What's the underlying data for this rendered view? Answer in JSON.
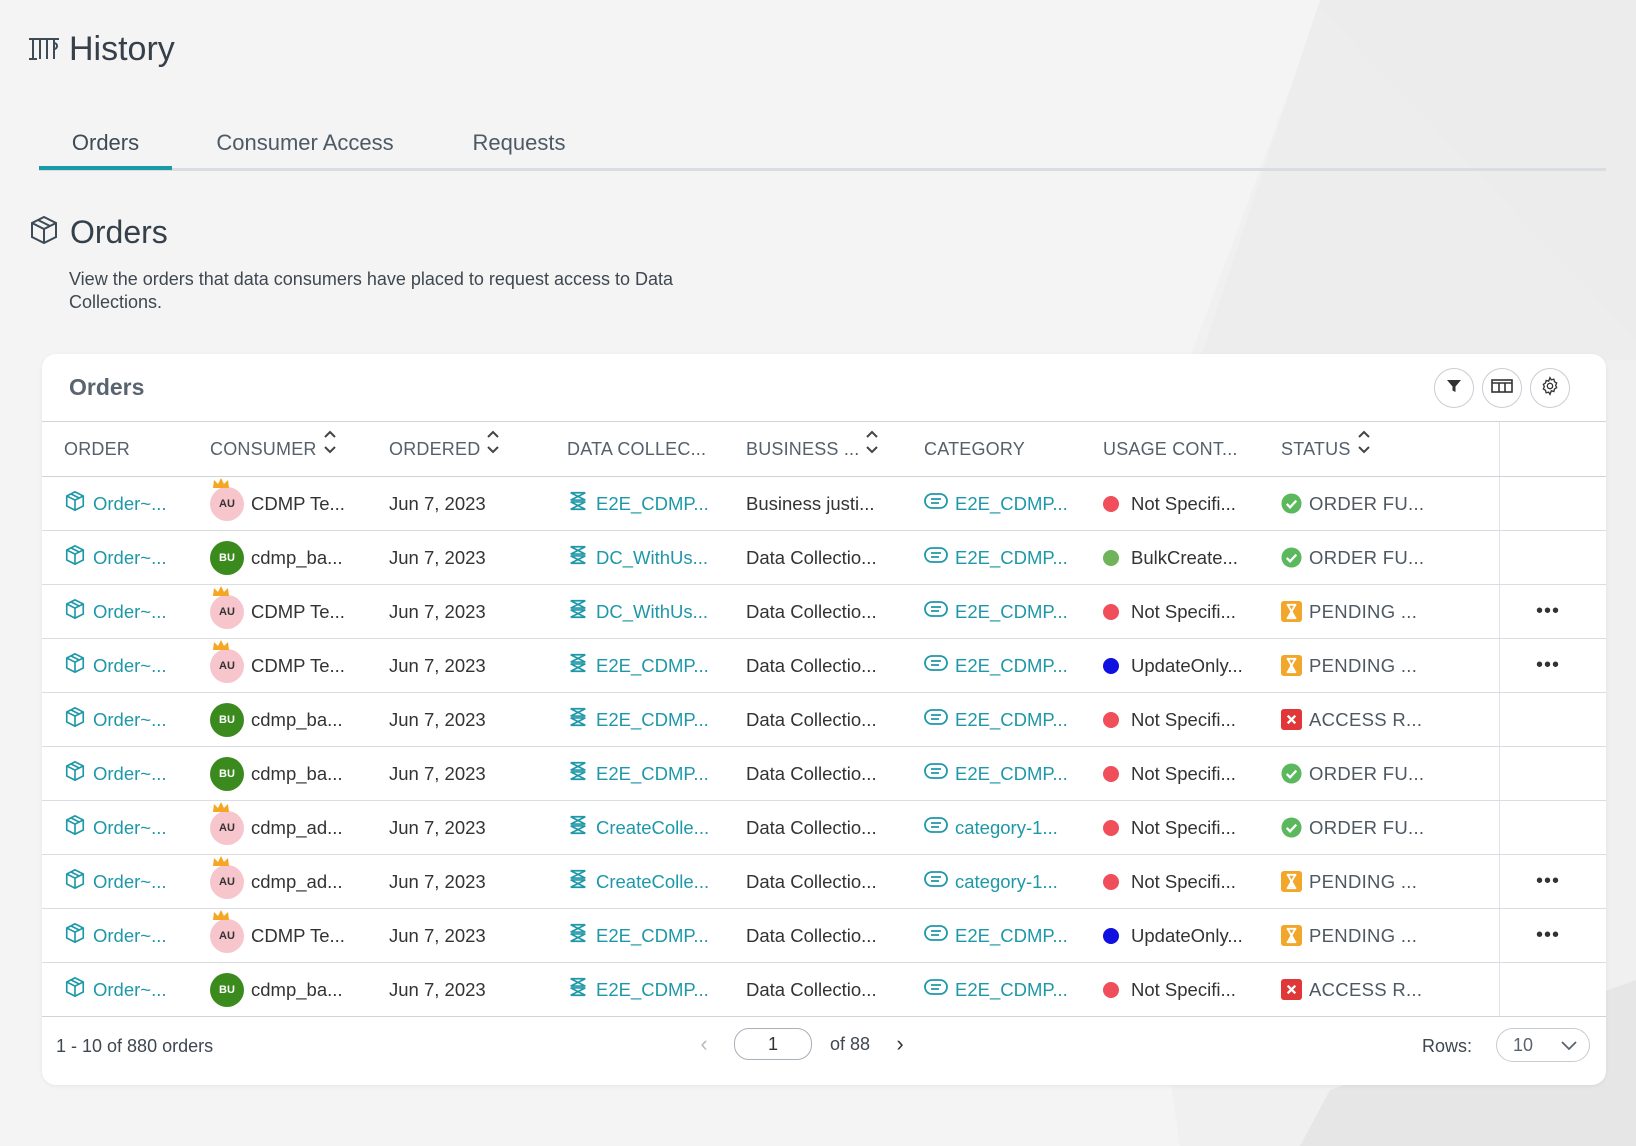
{
  "page": {
    "title": "History"
  },
  "tabs": [
    {
      "label": "Orders",
      "active": true
    },
    {
      "label": "Consumer Access",
      "active": false
    },
    {
      "label": "Requests",
      "active": false
    }
  ],
  "section": {
    "title": "Orders",
    "description": "View the orders that data consumers have placed to request access to Data Collections."
  },
  "card": {
    "title": "Orders",
    "actions": [
      "filter-icon",
      "columns-icon",
      "settings-icon"
    ]
  },
  "columns": [
    {
      "label": "ORDER",
      "sortable": false
    },
    {
      "label": "CONSUMER",
      "sortable": true
    },
    {
      "label": "ORDERED",
      "sortable": true
    },
    {
      "label": "DATA COLLEC...",
      "sortable": false
    },
    {
      "label": "BUSINESS ...",
      "sortable": true
    },
    {
      "label": "CATEGORY",
      "sortable": false
    },
    {
      "label": "USAGE CONT...",
      "sortable": false
    },
    {
      "label": "STATUS",
      "sortable": true
    }
  ],
  "colors": {
    "accent": "#1a9aa7",
    "link": "#1e98a8",
    "red_dot": "#f04e5a",
    "green_dot": "#6fb35a",
    "blue_dot": "#1010e0",
    "success": "#5cb85c",
    "pending": "#f2a62a",
    "denied": "#e03838"
  },
  "rows": [
    {
      "order": "Order~...",
      "avatar": "AU",
      "consumer": "CDMP Te...",
      "ordered": "Jun 7, 2023",
      "collection": "E2E_CDMP...",
      "business": "Business justi...",
      "category": "E2E_CDMP...",
      "usage_color": "#f04e5a",
      "usage": "Not Specifi...",
      "status_type": "success",
      "status": "ORDER FU...",
      "more": false
    },
    {
      "order": "Order~...",
      "avatar": "BU",
      "consumer": "cdmp_ba...",
      "ordered": "Jun 7, 2023",
      "collection": "DC_WithUs...",
      "business": "Data Collectio...",
      "category": "E2E_CDMP...",
      "usage_color": "#6fb35a",
      "usage": "BulkCreate...",
      "status_type": "success",
      "status": "ORDER FU...",
      "more": false
    },
    {
      "order": "Order~...",
      "avatar": "AU",
      "consumer": "CDMP Te...",
      "ordered": "Jun 7, 2023",
      "collection": "DC_WithUs...",
      "business": "Data Collectio...",
      "category": "E2E_CDMP...",
      "usage_color": "#f04e5a",
      "usage": "Not Specifi...",
      "status_type": "pending",
      "status": "PENDING ...",
      "more": true
    },
    {
      "order": "Order~...",
      "avatar": "AU",
      "consumer": "CDMP Te...",
      "ordered": "Jun 7, 2023",
      "collection": "E2E_CDMP...",
      "business": "Data Collectio...",
      "category": "E2E_CDMP...",
      "usage_color": "#1010e0",
      "usage": "UpdateOnly...",
      "status_type": "pending",
      "status": "PENDING ...",
      "more": true
    },
    {
      "order": "Order~...",
      "avatar": "BU",
      "consumer": "cdmp_ba...",
      "ordered": "Jun 7, 2023",
      "collection": "E2E_CDMP...",
      "business": "Data Collectio...",
      "category": "E2E_CDMP...",
      "usage_color": "#f04e5a",
      "usage": "Not Specifi...",
      "status_type": "denied",
      "status": "ACCESS R...",
      "more": false
    },
    {
      "order": "Order~...",
      "avatar": "BU",
      "consumer": "cdmp_ba...",
      "ordered": "Jun 7, 2023",
      "collection": "E2E_CDMP...",
      "business": "Data Collectio...",
      "category": "E2E_CDMP...",
      "usage_color": "#f04e5a",
      "usage": "Not Specifi...",
      "status_type": "success",
      "status": "ORDER FU...",
      "more": false
    },
    {
      "order": "Order~...",
      "avatar": "AU",
      "consumer": "cdmp_ad...",
      "ordered": "Jun 7, 2023",
      "collection": "CreateColle...",
      "business": "Data Collectio...",
      "category": "category-1...",
      "usage_color": "#f04e5a",
      "usage": "Not Specifi...",
      "status_type": "success",
      "status": "ORDER FU...",
      "more": false
    },
    {
      "order": "Order~...",
      "avatar": "AU",
      "consumer": "cdmp_ad...",
      "ordered": "Jun 7, 2023",
      "collection": "CreateColle...",
      "business": "Data Collectio...",
      "category": "category-1...",
      "usage_color": "#f04e5a",
      "usage": "Not Specifi...",
      "status_type": "pending",
      "status": "PENDING ...",
      "more": true
    },
    {
      "order": "Order~...",
      "avatar": "AU",
      "consumer": "CDMP Te...",
      "ordered": "Jun 7, 2023",
      "collection": "E2E_CDMP...",
      "business": "Data Collectio...",
      "category": "E2E_CDMP...",
      "usage_color": "#1010e0",
      "usage": "UpdateOnly...",
      "status_type": "pending",
      "status": "PENDING ...",
      "more": true
    },
    {
      "order": "Order~...",
      "avatar": "BU",
      "consumer": "cdmp_ba...",
      "ordered": "Jun 7, 2023",
      "collection": "E2E_CDMP...",
      "business": "Data Collectio...",
      "category": "E2E_CDMP...",
      "usage_color": "#f04e5a",
      "usage": "Not Specifi...",
      "status_type": "denied",
      "status": "ACCESS R...",
      "more": false
    }
  ],
  "more_label": "•••",
  "footer": {
    "range": "1 - 10 of 880 orders",
    "page": "1",
    "of_pages": "of 88",
    "rows_label": "Rows:",
    "rows_value": "10"
  }
}
